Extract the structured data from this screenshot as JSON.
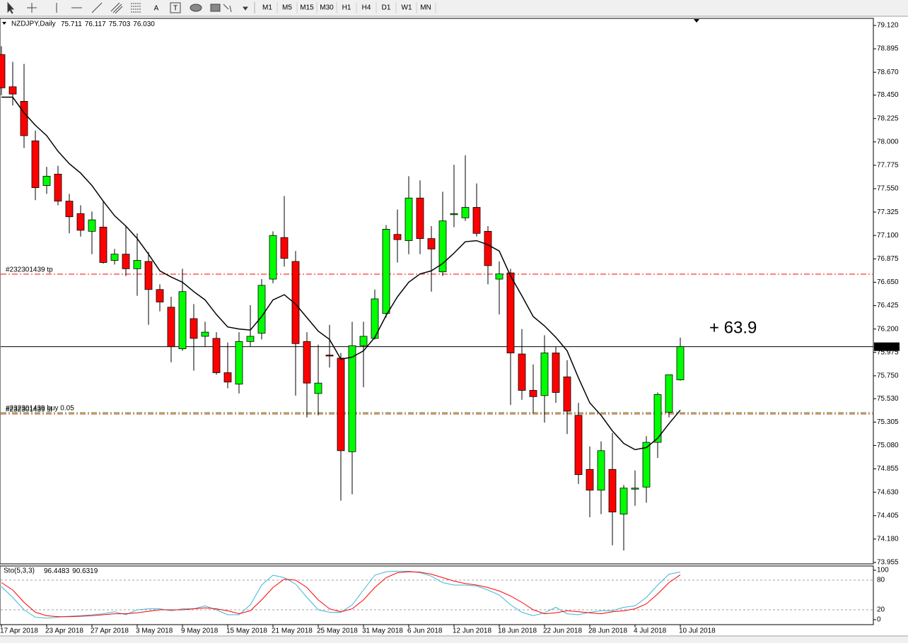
{
  "toolbar": {
    "text_tools": [
      "A",
      "T"
    ],
    "timeframes": [
      "M1",
      "M5",
      "M15",
      "M30",
      "H1",
      "H4",
      "D1",
      "W1",
      "MN"
    ]
  },
  "chart_data": [
    {
      "type": "candlestick",
      "title": "NZDJPY,Daily",
      "quote_labels": [
        "75.711",
        "76.117",
        "75.703",
        "76.030"
      ],
      "categories": [
        "17 Apr 2018",
        null,
        null,
        null,
        "23 Apr 2018",
        null,
        null,
        null,
        "27 Apr 2018",
        null,
        null,
        null,
        "3 May 2018",
        null,
        null,
        null,
        "9 May 2018",
        null,
        null,
        null,
        "15 May 2018",
        null,
        null,
        null,
        "21 May 2018",
        null,
        null,
        null,
        "25 May 2018",
        null,
        null,
        null,
        "31 May 2018",
        null,
        null,
        null,
        "6 Jun 2018",
        null,
        null,
        null,
        "12 Jun 2018",
        null,
        null,
        null,
        "18 Jun 2018",
        null,
        null,
        null,
        "22 Jun 2018",
        null,
        null,
        null,
        "28 Jun 2018",
        null,
        null,
        null,
        "4 Jul 2018",
        null,
        null,
        null,
        "10 Jul 2018"
      ],
      "open": [
        78.84,
        78.53,
        78.39,
        78.01,
        77.58,
        77.69,
        77.43,
        77.31,
        77.14,
        77.18,
        76.86,
        76.92,
        76.78,
        76.85,
        76.58,
        76.41,
        76.01,
        76.3,
        76.13,
        76.11,
        75.78,
        75.67,
        76.08,
        76.16,
        76.68,
        77.08,
        76.85,
        76.08,
        75.58,
        75.95,
        75.92,
        75.02,
        76.04,
        76.11,
        76.35,
        77.11,
        77.05,
        77.46,
        77.07,
        76.75,
        77.3,
        77.27,
        77.37,
        77.14,
        76.68,
        76.74,
        75.96,
        75.61,
        75.56,
        75.97,
        75.74,
        75.37,
        74.85,
        74.65,
        74.85,
        74.42,
        74.66,
        74.68,
        75.11,
        75.4,
        75.711
      ],
      "high": [
        78.92,
        78.77,
        78.75,
        78.11,
        77.76,
        77.77,
        77.5,
        77.39,
        77.33,
        77.43,
        76.97,
        77.19,
        77.12,
        76.94,
        76.63,
        76.51,
        76.78,
        76.44,
        76.27,
        76.17,
        76.07,
        76.17,
        76.43,
        76.68,
        77.14,
        77.48,
        76.95,
        76.17,
        76.05,
        76.24,
        75.97,
        76.27,
        76.27,
        76.58,
        77.2,
        77.35,
        77.67,
        77.63,
        77.19,
        77.52,
        77.78,
        77.87,
        77.6,
        77.19,
        76.85,
        76.78,
        76.2,
        75.86,
        76.14,
        76.03,
        75.9,
        75.49,
        75.07,
        75.12,
        75.2,
        74.7,
        74.84,
        75.17,
        75.59,
        75.76,
        76.117
      ],
      "low": [
        78.45,
        78.35,
        77.94,
        77.44,
        77.5,
        77.39,
        77.12,
        77.09,
        76.92,
        76.83,
        76.82,
        76.71,
        76.52,
        76.24,
        76.37,
        75.88,
        75.99,
        75.8,
        76.03,
        75.76,
        75.63,
        75.58,
        76.03,
        76.1,
        76.64,
        76.8,
        75.56,
        75.35,
        75.37,
        75.83,
        74.55,
        74.61,
        75.64,
        76.1,
        76.31,
        76.84,
        76.92,
        76.92,
        76.56,
        76.71,
        77.18,
        77.24,
        77.09,
        76.63,
        76.34,
        75.47,
        75.52,
        75.39,
        75.3,
        75.49,
        75.19,
        74.71,
        74.39,
        74.42,
        74.12,
        74.07,
        74.5,
        74.53,
        74.96,
        75.35,
        75.703
      ],
      "close": [
        78.52,
        78.46,
        78.06,
        77.56,
        77.67,
        77.43,
        77.28,
        77.15,
        77.25,
        76.84,
        76.92,
        76.78,
        76.86,
        76.58,
        76.46,
        76.03,
        76.56,
        76.11,
        76.17,
        75.78,
        75.69,
        76.08,
        76.13,
        76.62,
        77.1,
        76.88,
        76.06,
        75.68,
        75.68,
        75.94,
        75.03,
        76.04,
        76.13,
        76.49,
        77.16,
        77.06,
        77.46,
        77.07,
        76.97,
        77.24,
        77.31,
        77.37,
        77.12,
        76.81,
        76.73,
        75.97,
        75.61,
        75.55,
        75.97,
        75.59,
        75.41,
        74.8,
        74.65,
        75.03,
        74.44,
        74.67,
        74.67,
        75.11,
        75.57,
        75.76,
        76.03
      ],
      "up_color": "#00ff00",
      "down_color": "#ff0000",
      "moving_average": {
        "color": "#000000",
        "values": [
          78.43,
          78.43,
          78.28,
          78.16,
          78.06,
          77.91,
          77.79,
          77.7,
          77.58,
          77.43,
          77.29,
          77.19,
          77.07,
          76.92,
          76.76,
          76.7,
          76.65,
          76.56,
          76.48,
          76.34,
          76.22,
          76.2,
          76.19,
          76.32,
          76.48,
          76.53,
          76.44,
          76.31,
          76.18,
          76.1,
          75.91,
          75.93,
          75.99,
          76.12,
          76.33,
          76.51,
          76.65,
          76.73,
          76.76,
          76.83,
          76.93,
          77.04,
          77.05,
          77.01,
          76.95,
          76.71,
          76.52,
          76.32,
          76.23,
          76.12,
          75.99,
          75.73,
          75.49,
          75.37,
          75.22,
          75.1,
          75.04,
          75.06,
          75.15,
          75.29,
          75.42
        ]
      },
      "order_lines": [
        {
          "label": "#232301439 tp",
          "value": 76.728,
          "color": "#ff0000"
        },
        {
          "label": "#232301439 buy 0.05",
          "value": 75.396,
          "color": "#00a000"
        },
        {
          "label": "#232301439 sl",
          "value": 75.383,
          "color": "#ff0000"
        }
      ],
      "profit_label": "+ 63.9",
      "ylim": [
        73.955,
        79.12
      ],
      "yticks": [
        {
          "value": 79.12,
          "label": "79.120"
        },
        78.895,
        {
          "value": 78.67,
          "label": "78.670"
        },
        {
          "value": 78.45,
          "label": "78.450"
        },
        78.225,
        {
          "value": 78.0,
          "label": "78.000"
        },
        77.775,
        {
          "value": 77.55,
          "label": "77.550"
        },
        77.325,
        {
          "value": 77.1,
          "label": "77.100"
        },
        76.875,
        {
          "value": 76.65,
          "label": "76.650"
        },
        76.425,
        {
          "value": 76.2,
          "label": "76.200"
        },
        75.975,
        {
          "value": 75.75,
          "label": "75.750"
        },
        {
          "value": 75.53,
          "label": "75.530"
        },
        75.305,
        {
          "value": 75.08,
          "label": "75.080"
        },
        74.855,
        {
          "value": 74.63,
          "label": "74.630"
        },
        74.405,
        {
          "value": 74.18,
          "label": "74.180"
        },
        73.955
      ]
    },
    {
      "type": "line",
      "title": "Sto(5,3,3)",
      "series": [
        {
          "color": "#3fb6d6",
          "values": [
            67,
            45,
            20,
            5,
            3,
            5,
            7,
            8,
            10,
            12,
            16,
            10,
            20,
            22,
            22,
            18,
            22,
            22,
            28,
            20,
            10,
            10,
            30,
            70,
            90,
            85,
            72,
            45,
            20,
            15,
            15,
            30,
            60,
            90,
            97,
            98,
            98,
            95,
            88,
            75,
            70,
            70,
            68,
            60,
            50,
            30,
            15,
            8,
            14,
            25,
            12,
            10,
            15,
            18,
            18,
            25,
            28,
            45,
            70,
            92,
            96.4483
          ]
        },
        {
          "color": "#ff0000",
          "values": [
            75,
            60,
            35,
            15,
            8,
            6,
            6,
            7,
            8,
            10,
            12,
            12,
            14,
            17,
            20,
            20,
            20,
            22,
            24,
            22,
            18,
            12,
            18,
            40,
            65,
            82,
            80,
            65,
            40,
            22,
            16,
            22,
            40,
            65,
            85,
            95,
            97,
            96,
            92,
            85,
            78,
            73,
            70,
            65,
            58,
            48,
            35,
            20,
            12,
            14,
            18,
            16,
            14,
            12,
            16,
            18,
            22,
            32,
            52,
            75,
            90.6319
          ]
        }
      ],
      "ylim": [
        0,
        100
      ],
      "yticks": [
        0,
        20,
        80,
        100
      ]
    }
  ]
}
